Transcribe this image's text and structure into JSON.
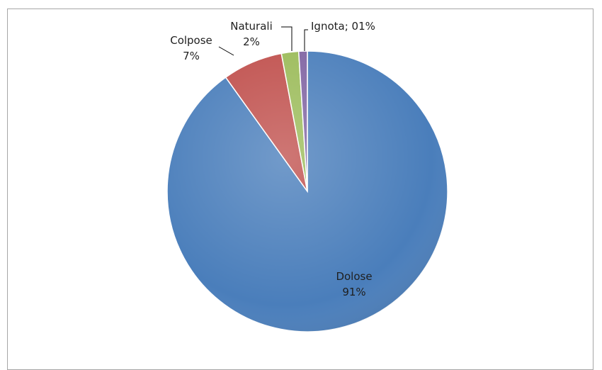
{
  "chart_data": {
    "type": "pie",
    "title": "",
    "slices": [
      {
        "name": "Dolose",
        "value": 91,
        "label_lines": [
          "Dolose",
          "91%"
        ],
        "color": "#4a7ebb"
      },
      {
        "name": "Colpose",
        "value": 7,
        "label_lines": [
          "Colpose",
          "7%"
        ],
        "color": "#c0504d"
      },
      {
        "name": "Naturali",
        "value": 2,
        "label_lines": [
          "Naturali",
          "2%"
        ],
        "color": "#9bbb59"
      },
      {
        "name": "Ignota",
        "value": 1,
        "label_lines": [
          "Ignota; 01%"
        ],
        "color": "#8064a2"
      }
    ],
    "start": "12 o'clock",
    "direction": "clockwise",
    "legend": "none",
    "data_labels": true
  }
}
